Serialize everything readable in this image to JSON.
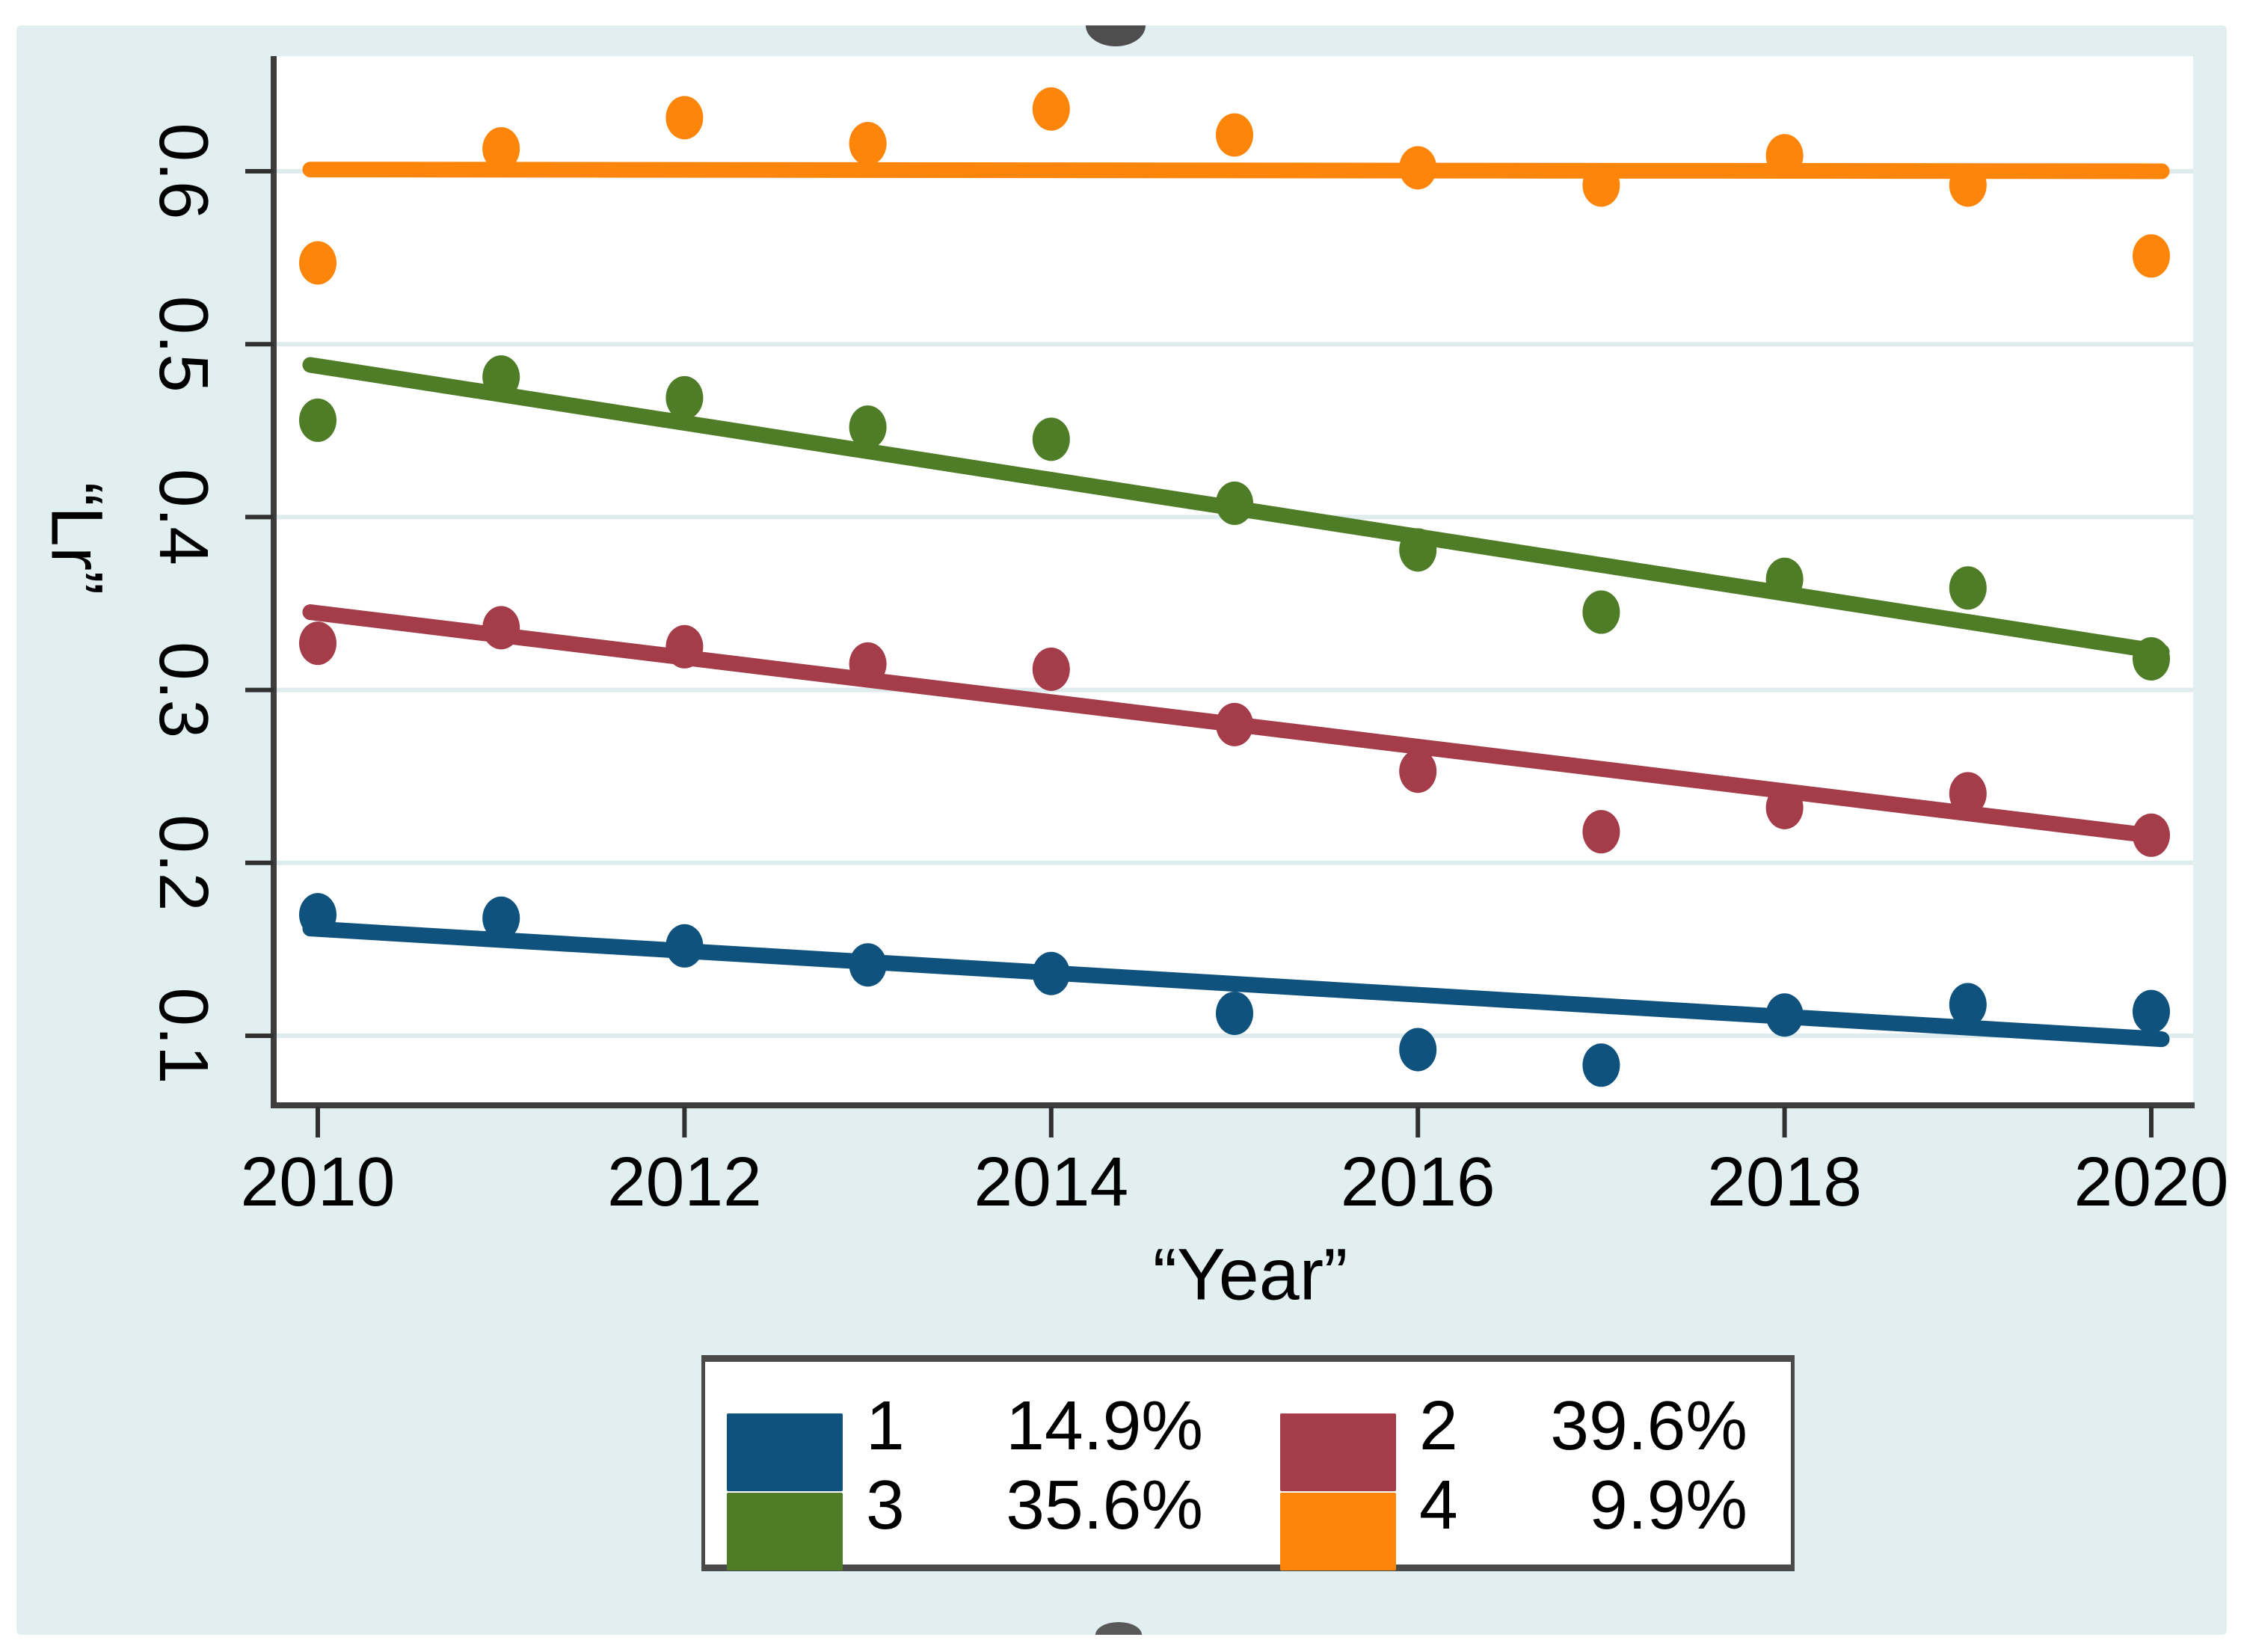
{
  "page": {
    "background": "#ffffff",
    "panel_color": "#e2eff1",
    "plot_bg": "#ffffff",
    "grid_color": "#dfecee",
    "axis_color": "#3d3d3d"
  },
  "chart_data": {
    "type": "scatter",
    "title": "",
    "xlabel": "“Year”",
    "ylabel": "“Lr”",
    "grid": true,
    "legend_position": "bottom",
    "x_range": [
      2009.76,
      2020.24
    ],
    "y_range": [
      0.06,
      0.665
    ],
    "x_ticks": [
      {
        "label": "2010",
        "value": 2010
      },
      {
        "label": "2012",
        "value": 2012
      },
      {
        "label": "2014",
        "value": 2014
      },
      {
        "label": "2016",
        "value": 2016
      },
      {
        "label": "2018",
        "value": 2018
      },
      {
        "label": "2020",
        "value": 2020
      }
    ],
    "y_ticks": [
      {
        "label": "0.6",
        "value": 0.6
      },
      {
        "label": "0.5",
        "value": 0.5
      },
      {
        "label": "0.4",
        "value": 0.4
      },
      {
        "label": "0.3",
        "value": 0.3
      },
      {
        "label": "0.2",
        "value": 0.2
      },
      {
        "label": "0.1",
        "value": 0.1
      }
    ],
    "years": [
      2010,
      2011,
      2012,
      2013,
      2014,
      2015,
      2016,
      2017,
      2018,
      2019,
      2020
    ],
    "series": [
      {
        "name": "1",
        "share": "14.9%",
        "color": "#0e527d",
        "values": [
          0.17,
          0.168,
          0.152,
          0.141,
          0.136,
          0.113,
          0.092,
          0.083,
          0.112,
          0.118,
          0.114
        ],
        "fit_start": 0.162,
        "fit_end": 0.098
      },
      {
        "name": "2",
        "share": "39.6%",
        "color": "#a43c49",
        "values": [
          0.327,
          0.336,
          0.325,
          0.315,
          0.312,
          0.28,
          0.253,
          0.218,
          0.232,
          0.24,
          0.216
        ],
        "fit_start": 0.345,
        "fit_end": 0.215
      },
      {
        "name": "3",
        "share": "35.6%",
        "color": "#4e7c27",
        "values": [
          0.456,
          0.481,
          0.469,
          0.452,
          0.445,
          0.408,
          0.381,
          0.345,
          0.364,
          0.359,
          0.318
        ],
        "fit_start": 0.488,
        "fit_end": 0.322
      },
      {
        "name": "4",
        "share": "9.9%",
        "color": "#fc850a",
        "values": [
          0.547,
          0.613,
          0.631,
          0.616,
          0.636,
          0.621,
          0.602,
          0.592,
          0.609,
          0.592,
          0.551
        ],
        "fit_start": 0.601,
        "fit_end": 0.6
      }
    ],
    "legend": {
      "entries": [
        {
          "num": "1",
          "pct": "14.9%"
        },
        {
          "num": "2",
          "pct": "39.6%"
        },
        {
          "num": "3",
          "pct": "35.6%"
        },
        {
          "num": "4",
          "pct": "9.9%"
        }
      ]
    }
  }
}
